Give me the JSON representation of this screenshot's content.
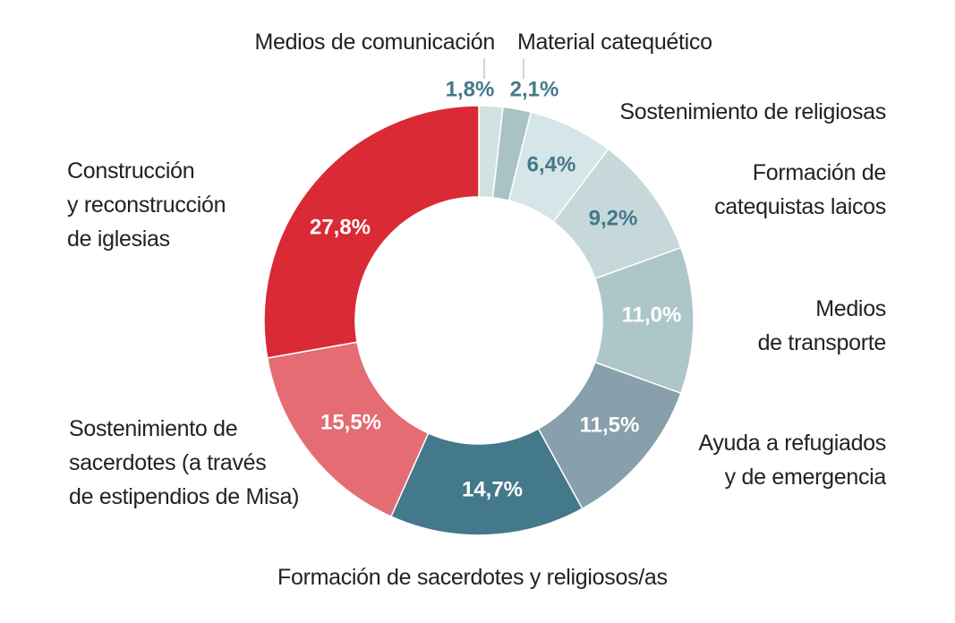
{
  "chart_data": {
    "type": "donut",
    "categories": [
      "Medios de comunicación",
      "Material catequético",
      "Sostenimiento de religiosas",
      "Formación de\ncatequistas laicos",
      "Medios\nde transporte",
      "Ayuda a refugiados\ny de emergencia",
      "Formación de sacerdotes y religiosos/as",
      "Sostenimiento de\nsacerdotes (a través\nde estipendios de Misa)",
      "Construcción\ny reconstrucción\nde iglesias"
    ],
    "values": [
      1.8,
      2.1,
      6.4,
      9.2,
      11.0,
      11.5,
      14.7,
      15.5,
      27.8
    ],
    "value_labels": [
      "1,8%",
      "2,1%",
      "6,4%",
      "9,2%",
      "11,0%",
      "11,5%",
      "14,7%",
      "15,5%",
      "27,8%"
    ],
    "colors": [
      "#d3e1e2",
      "#a9c2c4",
      "#d6e5e7",
      "#c6d8da",
      "#adc6c8",
      "#889fac",
      "#44788b",
      "#e56c73",
      "#d92a35"
    ],
    "label_colors": [
      "#44788b",
      "#44788b",
      "#44788b",
      "#44788b",
      "#ffffff",
      "#ffffff",
      "#ffffff",
      "#ffffff",
      "#ffffff"
    ]
  }
}
